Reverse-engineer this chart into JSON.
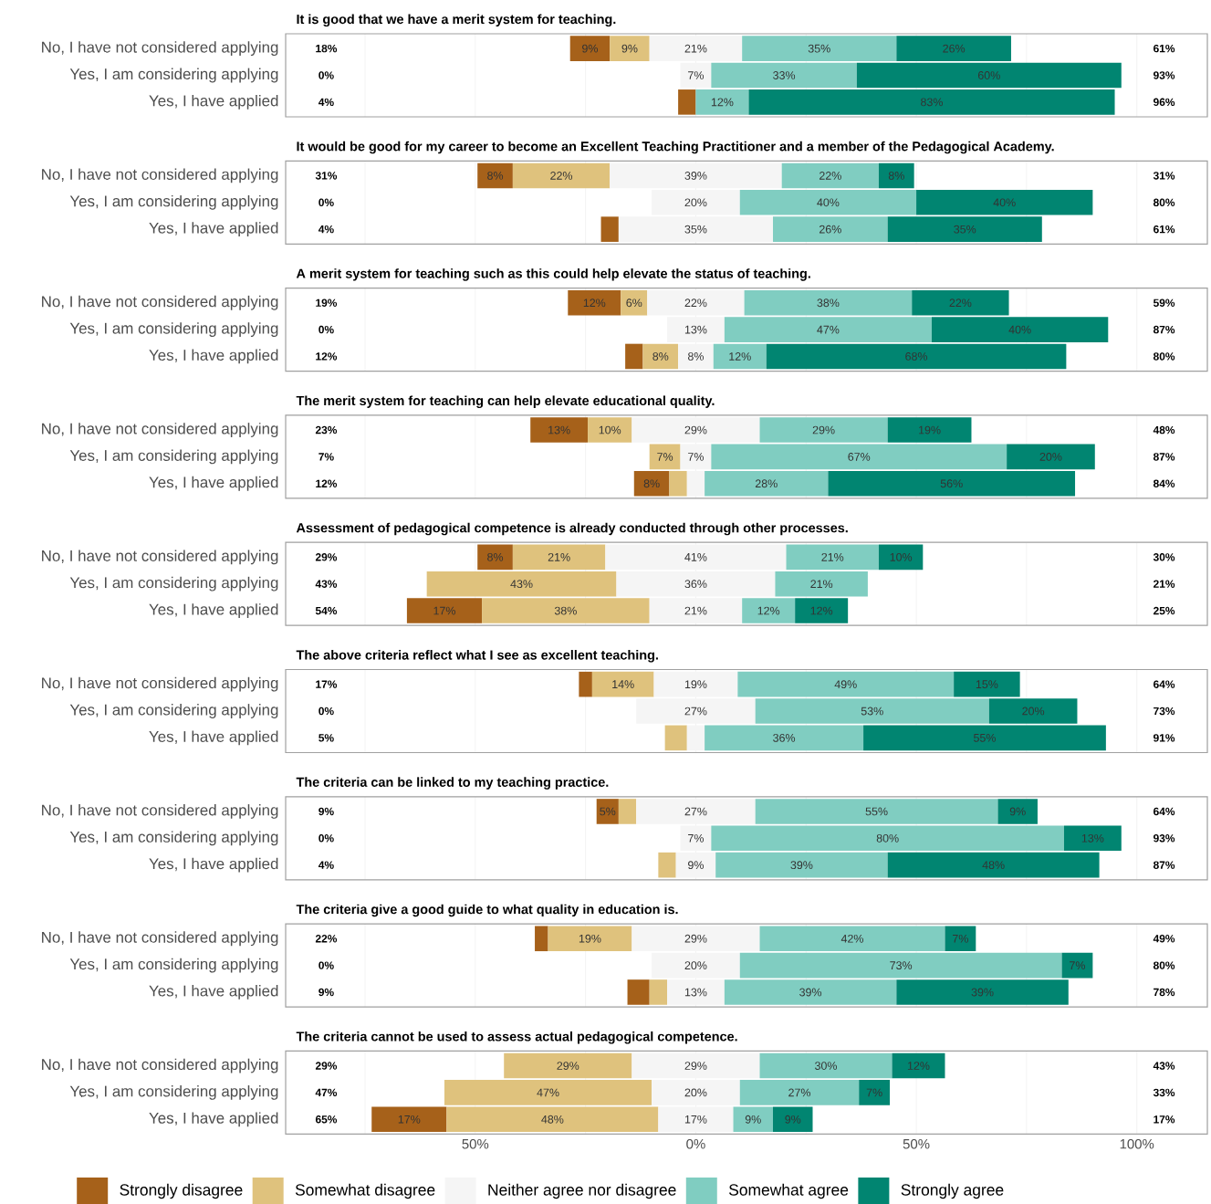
{
  "chart_data": [
    {
      "type": "bar",
      "orientation": "horizontal",
      "title": "It is good that we have a merit system for teaching.",
      "categories": [
        "No, I have not considered applying",
        "Yes, I am considering applying",
        "Yes, I have applied"
      ],
      "xlim": [
        -93,
        116
      ],
      "xticks": [
        {
          "value": -75,
          "label": null
        },
        {
          "value": -50,
          "label": null
        },
        {
          "value": -25,
          "label": null
        },
        {
          "value": 0,
          "label": null
        },
        {
          "value": 25,
          "label": null
        },
        {
          "value": 50,
          "label": null
        },
        {
          "value": 75,
          "label": null
        },
        {
          "value": 100,
          "label": null
        }
      ],
      "grid": "x",
      "tick_labels": "y",
      "annotations": [
        "18%",
        "61%",
        "0%",
        "93%",
        "4%",
        "96%"
      ],
      "series": [
        {
          "color": "#a6611a",
          "base": [
            -28.5,
            null,
            -4
          ],
          "values": [
            9,
            0,
            4
          ],
          "value_labels": [
            "9%",
            null,
            null
          ]
        },
        {
          "color": "#dfc27d",
          "base": [
            -19.5,
            null,
            null
          ],
          "values": [
            9,
            0,
            0
          ],
          "value_labels": [
            "9%",
            null,
            null
          ]
        },
        {
          "color": "#f5f5f5",
          "base": [
            -10.5,
            -3.5,
            null
          ],
          "values": [
            21,
            7,
            0
          ],
          "value_labels": [
            "21%",
            "7%",
            null
          ]
        },
        {
          "color": "#80cdc1",
          "base": [
            10.5,
            3.5,
            0
          ],
          "values": [
            35,
            33,
            12
          ],
          "value_labels": [
            "35%",
            "33%",
            "12%"
          ]
        },
        {
          "color": "#018571",
          "base": [
            45.5,
            36.5,
            12
          ],
          "values": [
            26,
            60,
            83
          ],
          "value_labels": [
            "26%",
            "60%",
            "83%"
          ]
        }
      ]
    },
    {
      "type": "bar",
      "orientation": "horizontal",
      "title": "It would be good for my career to become an Excellent Teaching Practitioner and a member of the Pedagogical Academy.",
      "categories": [
        "No, I have not considered applying",
        "Yes, I am considering applying",
        "Yes, I have applied"
      ],
      "xlim": [
        -93,
        116
      ],
      "xticks": [
        {
          "value": -75,
          "label": null
        },
        {
          "value": -50,
          "label": null
        },
        {
          "value": -25,
          "label": null
        },
        {
          "value": 0,
          "label": null
        },
        {
          "value": 25,
          "label": null
        },
        {
          "value": 50,
          "label": null
        },
        {
          "value": 75,
          "label": null
        },
        {
          "value": 100,
          "label": null
        }
      ],
      "grid": "x",
      "tick_labels": "y",
      "annotations": [
        "31%",
        "31%",
        "0%",
        "80%",
        "4%",
        "61%"
      ],
      "series": [
        {
          "color": "#a6611a",
          "base": [
            -49.5,
            null,
            -21.5
          ],
          "values": [
            8,
            0,
            4
          ],
          "value_labels": [
            "8%",
            null,
            null
          ]
        },
        {
          "color": "#dfc27d",
          "base": [
            -41.5,
            null,
            null
          ],
          "values": [
            22,
            0,
            0
          ],
          "value_labels": [
            "22%",
            null,
            null
          ]
        },
        {
          "color": "#f5f5f5",
          "base": [
            -19.5,
            -10,
            -17.5
          ],
          "values": [
            39,
            20,
            35
          ],
          "value_labels": [
            "39%",
            "20%",
            "35%"
          ]
        },
        {
          "color": "#80cdc1",
          "base": [
            19.5,
            10,
            17.5
          ],
          "values": [
            22,
            40,
            26
          ],
          "value_labels": [
            "22%",
            "40%",
            "26%"
          ]
        },
        {
          "color": "#018571",
          "base": [
            41.5,
            50,
            43.5
          ],
          "values": [
            8,
            40,
            35
          ],
          "value_labels": [
            "8%",
            "40%",
            "35%"
          ]
        }
      ]
    },
    {
      "type": "bar",
      "orientation": "horizontal",
      "title": "A merit system for teaching such as this could help elevate the status of teaching.",
      "categories": [
        "No, I have not considered applying",
        "Yes, I am considering applying",
        "Yes, I have applied"
      ],
      "xlim": [
        -93,
        116
      ],
      "xticks": [
        {
          "value": -75,
          "label": null
        },
        {
          "value": -50,
          "label": null
        },
        {
          "value": -25,
          "label": null
        },
        {
          "value": 0,
          "label": null
        },
        {
          "value": 25,
          "label": null
        },
        {
          "value": 50,
          "label": null
        },
        {
          "value": 75,
          "label": null
        },
        {
          "value": 100,
          "label": null
        }
      ],
      "grid": "x",
      "tick_labels": "y",
      "annotations": [
        "19%",
        "59%",
        "0%",
        "87%",
        "12%",
        "80%"
      ],
      "series": [
        {
          "color": "#a6611a",
          "base": [
            -29,
            null,
            -16
          ],
          "values": [
            12,
            0,
            4
          ],
          "value_labels": [
            "12%",
            null,
            null
          ]
        },
        {
          "color": "#dfc27d",
          "base": [
            -17,
            null,
            -12
          ],
          "values": [
            6,
            0,
            8
          ],
          "value_labels": [
            "6%",
            null,
            "8%"
          ]
        },
        {
          "color": "#f5f5f5",
          "base": [
            -11,
            -6.5,
            -4
          ],
          "values": [
            22,
            13,
            8
          ],
          "value_labels": [
            "22%",
            "13%",
            "8%"
          ]
        },
        {
          "color": "#80cdc1",
          "base": [
            11,
            6.5,
            4
          ],
          "values": [
            38,
            47,
            12
          ],
          "value_labels": [
            "38%",
            "47%",
            "12%"
          ]
        },
        {
          "color": "#018571",
          "base": [
            49,
            53.5,
            16
          ],
          "values": [
            22,
            40,
            68
          ],
          "value_labels": [
            "22%",
            "40%",
            "68%"
          ]
        }
      ]
    },
    {
      "type": "bar",
      "orientation": "horizontal",
      "title": "The merit system for teaching can help elevate educational quality.",
      "categories": [
        "No, I have not considered applying",
        "Yes, I am considering applying",
        "Yes, I have applied"
      ],
      "xlim": [
        -93,
        116
      ],
      "xticks": [
        {
          "value": -75,
          "label": null
        },
        {
          "value": -50,
          "label": null
        },
        {
          "value": -25,
          "label": null
        },
        {
          "value": 0,
          "label": null
        },
        {
          "value": 25,
          "label": null
        },
        {
          "value": 50,
          "label": null
        },
        {
          "value": 75,
          "label": null
        },
        {
          "value": 100,
          "label": null
        }
      ],
      "grid": "x",
      "tick_labels": "y",
      "annotations": [
        "23%",
        "48%",
        "7%",
        "87%",
        "12%",
        "84%"
      ],
      "series": [
        {
          "color": "#a6611a",
          "base": [
            -37.5,
            null,
            -14
          ],
          "values": [
            13,
            0,
            8
          ],
          "value_labels": [
            "13%",
            null,
            "8%"
          ]
        },
        {
          "color": "#dfc27d",
          "base": [
            -24.5,
            -10.5,
            -6
          ],
          "values": [
            10,
            7,
            4
          ],
          "value_labels": [
            "10%",
            "7%",
            null
          ]
        },
        {
          "color": "#f5f5f5",
          "base": [
            -14.5,
            -3.5,
            -2
          ],
          "values": [
            29,
            7,
            4
          ],
          "value_labels": [
            "29%",
            "7%",
            null
          ]
        },
        {
          "color": "#80cdc1",
          "base": [
            14.5,
            3.5,
            2
          ],
          "values": [
            29,
            67,
            28
          ],
          "value_labels": [
            "29%",
            "67%",
            "28%"
          ]
        },
        {
          "color": "#018571",
          "base": [
            43.5,
            70.5,
            30
          ],
          "values": [
            19,
            20,
            56
          ],
          "value_labels": [
            "19%",
            "20%",
            "56%"
          ]
        }
      ]
    },
    {
      "type": "bar",
      "orientation": "horizontal",
      "title": "Assessment of pedagogical competence is already conducted through other processes.",
      "categories": [
        "No, I have not considered applying",
        "Yes, I am considering applying",
        "Yes, I have applied"
      ],
      "xlim": [
        -93,
        116
      ],
      "xticks": [
        {
          "value": -75,
          "label": null
        },
        {
          "value": -50,
          "label": null
        },
        {
          "value": -25,
          "label": null
        },
        {
          "value": 0,
          "label": null
        },
        {
          "value": 25,
          "label": null
        },
        {
          "value": 50,
          "label": null
        },
        {
          "value": 75,
          "label": null
        },
        {
          "value": 100,
          "label": null
        }
      ],
      "grid": "x",
      "tick_labels": "y",
      "annotations": [
        "29%",
        "30%",
        "43%",
        "21%",
        "54%",
        "25%"
      ],
      "series": [
        {
          "color": "#a6611a",
          "base": [
            -49.5,
            null,
            -65.5
          ],
          "values": [
            8,
            0,
            17
          ],
          "value_labels": [
            "8%",
            null,
            "17%"
          ]
        },
        {
          "color": "#dfc27d",
          "base": [
            -41.5,
            -61,
            -48.5
          ],
          "values": [
            21,
            43,
            38
          ],
          "value_labels": [
            "21%",
            "43%",
            "38%"
          ]
        },
        {
          "color": "#f5f5f5",
          "base": [
            -20.5,
            -18,
            -10.5
          ],
          "values": [
            41,
            36,
            21
          ],
          "value_labels": [
            "41%",
            "36%",
            "21%"
          ]
        },
        {
          "color": "#80cdc1",
          "base": [
            20.5,
            18,
            10.5
          ],
          "values": [
            21,
            21,
            12
          ],
          "value_labels": [
            "21%",
            "21%",
            "12%"
          ]
        },
        {
          "color": "#018571",
          "base": [
            41.5,
            null,
            22.5
          ],
          "values": [
            10,
            0,
            12
          ],
          "value_labels": [
            "10%",
            null,
            "12%"
          ]
        }
      ]
    },
    {
      "type": "bar",
      "orientation": "horizontal",
      "title": "The above criteria reflect what I see as excellent teaching.",
      "categories": [
        "No, I have not considered applying",
        "Yes, I am considering applying",
        "Yes, I have applied"
      ],
      "xlim": [
        -93,
        116
      ],
      "xticks": [
        {
          "value": -75,
          "label": null
        },
        {
          "value": -50,
          "label": null
        },
        {
          "value": -25,
          "label": null
        },
        {
          "value": 0,
          "label": null
        },
        {
          "value": 25,
          "label": null
        },
        {
          "value": 50,
          "label": null
        },
        {
          "value": 75,
          "label": null
        },
        {
          "value": 100,
          "label": null
        }
      ],
      "grid": "x",
      "tick_labels": "y",
      "annotations": [
        "17%",
        "64%",
        "0%",
        "73%",
        "5%",
        "91%"
      ],
      "series": [
        {
          "color": "#a6611a",
          "base": [
            -26.5,
            null,
            null
          ],
          "values": [
            3,
            0,
            0
          ],
          "value_labels": [
            null,
            null,
            null
          ]
        },
        {
          "color": "#dfc27d",
          "base": [
            -23.5,
            null,
            -7
          ],
          "values": [
            14,
            0,
            5
          ],
          "value_labels": [
            "14%",
            null,
            null
          ]
        },
        {
          "color": "#f5f5f5",
          "base": [
            -9.5,
            -13.5,
            -2
          ],
          "values": [
            19,
            27,
            4
          ],
          "value_labels": [
            "19%",
            "27%",
            null
          ]
        },
        {
          "color": "#80cdc1",
          "base": [
            9.5,
            13.5,
            2
          ],
          "values": [
            49,
            53,
            36
          ],
          "value_labels": [
            "49%",
            "53%",
            "36%"
          ]
        },
        {
          "color": "#018571",
          "base": [
            58.5,
            66.5,
            38
          ],
          "values": [
            15,
            20,
            55
          ],
          "value_labels": [
            "15%",
            "20%",
            "55%"
          ]
        }
      ]
    },
    {
      "type": "bar",
      "orientation": "horizontal",
      "title": "The criteria can be linked to my teaching practice.",
      "categories": [
        "No, I have not considered applying",
        "Yes, I am considering applying",
        "Yes, I have applied"
      ],
      "xlim": [
        -93,
        116
      ],
      "xticks": [
        {
          "value": -75,
          "label": null
        },
        {
          "value": -50,
          "label": null
        },
        {
          "value": -25,
          "label": null
        },
        {
          "value": 0,
          "label": null
        },
        {
          "value": 25,
          "label": null
        },
        {
          "value": 50,
          "label": null
        },
        {
          "value": 75,
          "label": null
        },
        {
          "value": 100,
          "label": null
        }
      ],
      "grid": "x",
      "tick_labels": "y",
      "annotations": [
        "9%",
        "64%",
        "0%",
        "93%",
        "4%",
        "87%"
      ],
      "series": [
        {
          "color": "#a6611a",
          "base": [
            -22.5,
            null,
            null
          ],
          "values": [
            5,
            0,
            0
          ],
          "value_labels": [
            "5%",
            null,
            null
          ]
        },
        {
          "color": "#dfc27d",
          "base": [
            -17.5,
            null,
            -8.5
          ],
          "values": [
            4,
            0,
            4
          ],
          "value_labels": [
            null,
            null,
            null
          ]
        },
        {
          "color": "#f5f5f5",
          "base": [
            -13.5,
            -3.5,
            -4.5
          ],
          "values": [
            27,
            7,
            9
          ],
          "value_labels": [
            "27%",
            "7%",
            "9%"
          ]
        },
        {
          "color": "#80cdc1",
          "base": [
            13.5,
            3.5,
            4.5
          ],
          "values": [
            55,
            80,
            39
          ],
          "value_labels": [
            "55%",
            "80%",
            "39%"
          ]
        },
        {
          "color": "#018571",
          "base": [
            68.5,
            83.5,
            43.5
          ],
          "values": [
            9,
            13,
            48
          ],
          "value_labels": [
            "9%",
            "13%",
            "48%"
          ]
        }
      ]
    },
    {
      "type": "bar",
      "orientation": "horizontal",
      "title": "The criteria give a good guide to what quality in education is.",
      "categories": [
        "No, I have not considered applying",
        "Yes, I am considering applying",
        "Yes, I have applied"
      ],
      "xlim": [
        -93,
        116
      ],
      "xticks": [
        {
          "value": -75,
          "label": null
        },
        {
          "value": -50,
          "label": null
        },
        {
          "value": -25,
          "label": null
        },
        {
          "value": 0,
          "label": null
        },
        {
          "value": 25,
          "label": null
        },
        {
          "value": 50,
          "label": null
        },
        {
          "value": 75,
          "label": null
        },
        {
          "value": 100,
          "label": null
        }
      ],
      "grid": "x",
      "tick_labels": "y",
      "annotations": [
        "22%",
        "49%",
        "0%",
        "80%",
        "9%",
        "78%"
      ],
      "series": [
        {
          "color": "#a6611a",
          "base": [
            -36.5,
            null,
            -15.5
          ],
          "values": [
            3,
            0,
            5
          ],
          "value_labels": [
            null,
            null,
            null
          ]
        },
        {
          "color": "#dfc27d",
          "base": [
            -33.5,
            null,
            -10.5
          ],
          "values": [
            19,
            0,
            4
          ],
          "value_labels": [
            "19%",
            null,
            null
          ]
        },
        {
          "color": "#f5f5f5",
          "base": [
            -14.5,
            -10,
            -6.5
          ],
          "values": [
            29,
            20,
            13
          ],
          "value_labels": [
            "29%",
            "20%",
            "13%"
          ]
        },
        {
          "color": "#80cdc1",
          "base": [
            14.5,
            10,
            6.5
          ],
          "values": [
            42,
            73,
            39
          ],
          "value_labels": [
            "42%",
            "73%",
            "39%"
          ]
        },
        {
          "color": "#018571",
          "base": [
            56.5,
            83,
            45.5
          ],
          "values": [
            7,
            7,
            39
          ],
          "value_labels": [
            "7%",
            "7%",
            "39%"
          ]
        }
      ]
    },
    {
      "type": "bar",
      "orientation": "horizontal",
      "title": "The criteria cannot be used to assess actual pedagogical competence.",
      "categories": [
        "No, I have not considered applying",
        "Yes, I am considering applying",
        "Yes, I have applied"
      ],
      "xlim": [
        -93,
        116
      ],
      "xticks": [
        {
          "value": -75,
          "label": null
        },
        {
          "value": -50,
          "label": "50%"
        },
        {
          "value": -25,
          "label": null
        },
        {
          "value": 0,
          "label": "0%"
        },
        {
          "value": 25,
          "label": null
        },
        {
          "value": 50,
          "label": "50%"
        },
        {
          "value": 75,
          "label": null
        },
        {
          "value": 100,
          "label": "100%"
        }
      ],
      "grid": "x",
      "legend": "bottom",
      "annotations": [
        "29%",
        "43%",
        "47%",
        "33%",
        "65%",
        "17%"
      ],
      "series": [
        {
          "name": "Strongly disagree",
          "color": "#a6611a",
          "base": [
            null,
            null,
            -73.5
          ],
          "values": [
            0,
            0,
            17
          ],
          "value_labels": [
            null,
            null,
            "17%"
          ]
        },
        {
          "name": "Somewhat disagree",
          "color": "#dfc27d",
          "base": [
            -43.5,
            -57,
            -56.5
          ],
          "values": [
            29,
            47,
            48
          ],
          "value_labels": [
            "29%",
            "47%",
            "48%"
          ]
        },
        {
          "name": "Neither agree nor disagree",
          "color": "#f5f5f5",
          "base": [
            -14.5,
            -10,
            -8.5
          ],
          "values": [
            29,
            20,
            17
          ],
          "value_labels": [
            "29%",
            "20%",
            "17%"
          ]
        },
        {
          "name": "Somewhat agree",
          "color": "#80cdc1",
          "base": [
            14.5,
            10,
            8.5
          ],
          "values": [
            30,
            27,
            9
          ],
          "value_labels": [
            "30%",
            "27%",
            "9%"
          ]
        },
        {
          "name": "Strongly agree",
          "color": "#018571",
          "base": [
            44.5,
            37,
            17.5
          ],
          "values": [
            12,
            7,
            9
          ],
          "value_labels": [
            "12%",
            "7%",
            "9%"
          ]
        }
      ]
    }
  ]
}
